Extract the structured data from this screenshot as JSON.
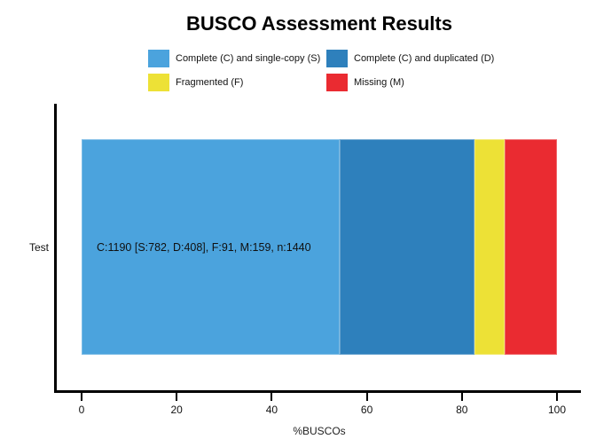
{
  "title": "BUSCO Assessment Results",
  "legend": {
    "items": [
      {
        "label": "Complete (C) and single-copy (S)",
        "color": "#4BA3DD"
      },
      {
        "label": "Complete (C) and duplicated (D)",
        "color": "#2E80BC"
      },
      {
        "label": "Fragmented (F)",
        "color": "#EDE136"
      },
      {
        "label": "Missing (M)",
        "color": "#EA2B31"
      }
    ]
  },
  "chart_data": {
    "type": "bar",
    "orientation": "horizontal",
    "stacked": true,
    "title": "BUSCO Assessment Results",
    "categories": [
      "Test"
    ],
    "series": [
      {
        "name": "Complete (C) and single-copy (S)",
        "code": "S",
        "count": 782,
        "percent": 54.3,
        "color": "#4BA3DD"
      },
      {
        "name": "Complete (C) and duplicated (D)",
        "code": "D",
        "count": 408,
        "percent": 28.3,
        "color": "#2E80BC"
      },
      {
        "name": "Fragmented (F)",
        "code": "F",
        "count": 91,
        "percent": 6.3,
        "color": "#EDE136"
      },
      {
        "name": "Missing (M)",
        "code": "M",
        "count": 159,
        "percent": 11.0,
        "color": "#EA2B31"
      }
    ],
    "complete_total": 1190,
    "total_n": 1440,
    "bar_labels": [
      "C:1190 [S:782, D:408], F:91, M:159, n:1440"
    ],
    "xlabel": "%BUSCOs",
    "xticks": [
      0,
      20,
      40,
      60,
      80,
      100
    ],
    "xlim": [
      0,
      100
    ],
    "legend_position": "top",
    "grid": false
  }
}
